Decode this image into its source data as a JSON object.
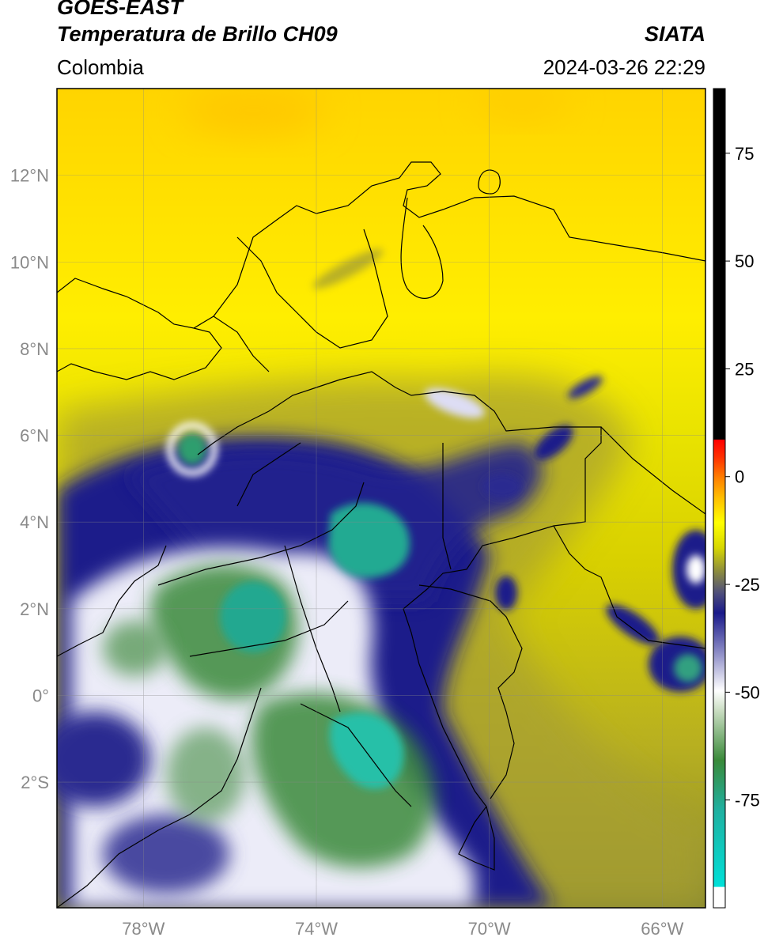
{
  "header": {
    "satellite": "GOES-EAST",
    "product": "Temperatura de Brillo CH09",
    "region": "Colombia",
    "organization": "SIATA",
    "timestamp": "2024-03-26 22:29"
  },
  "axes": {
    "lat_ticks": [
      "12°N",
      "10°N",
      "8°N",
      "6°N",
      "4°N",
      "2°N",
      "0°",
      "2°S"
    ],
    "lat_values": [
      12,
      10,
      8,
      6,
      4,
      2,
      0,
      -2
    ],
    "lon_ticks": [
      "78°W",
      "74°W",
      "70°W",
      "66°W"
    ],
    "lon_values": [
      -78,
      -74,
      -70,
      -66
    ],
    "lon_range": [
      -80,
      -65
    ],
    "lat_range": [
      -4.9,
      14
    ]
  },
  "colorbar": {
    "ticks": [
      "75",
      "50",
      "25",
      "0",
      "-25",
      "-50",
      "-75"
    ],
    "tick_values": [
      75,
      50,
      25,
      0,
      -25,
      -50,
      -75
    ],
    "range": [
      -100,
      90
    ]
  },
  "colors": {
    "warm_yellow": "#ffe800",
    "olive": "#8a8a30",
    "navy": "#1a1a8a",
    "white": "#ffffff",
    "green": "#3a8a3a",
    "teal": "#20b0a0",
    "red": "#ff3000",
    "black": "#000000"
  }
}
